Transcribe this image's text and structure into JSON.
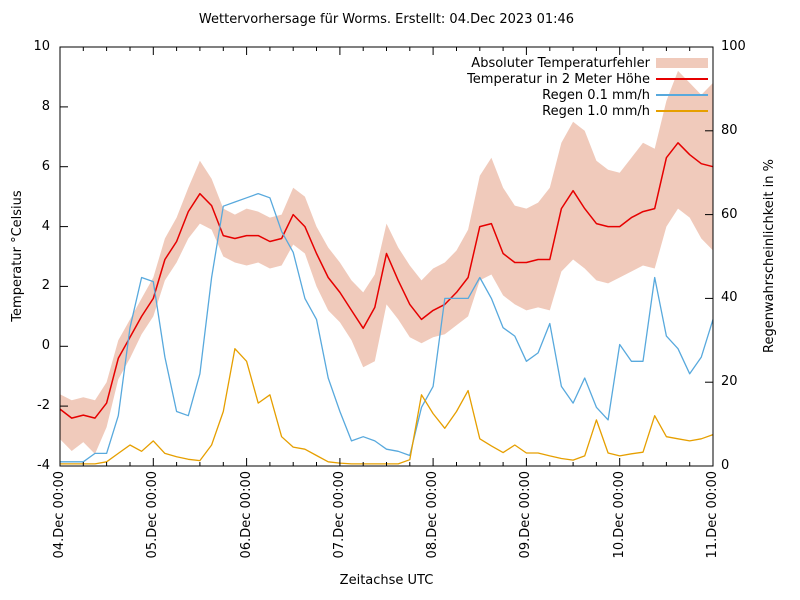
{
  "chart_data": {
    "type": "line",
    "title": "Wettervorhersage für Worms. Erstellt: 04.Dec 2023 01:46",
    "xlabel": "Zeitachse UTC",
    "ylabel_left": "Temperatur °Celsius",
    "ylabel_right": "Regenwahrscheinlichkeit in %",
    "grid": false,
    "legend_position": "top-right-inside",
    "xlim_hours": [
      0,
      168
    ],
    "x_step_hours": 3,
    "minor_x_tick_hours": 6,
    "major_x_tick_hours": 24,
    "x_tick_labels": [
      "04.Dec 00:00",
      "05.Dec 00:00",
      "06.Dec 00:00",
      "07.Dec 00:00",
      "08.Dec 00:00",
      "09.Dec 00:00",
      "10.Dec 00:00",
      "11.Dec 00:00"
    ],
    "ylim_left": [
      -4,
      10
    ],
    "yticks_left": [
      10,
      8,
      6,
      4,
      2,
      0,
      -2,
      -4
    ],
    "ylim_right": [
      0,
      100
    ],
    "yticks_right": [
      100,
      80,
      60,
      40,
      20,
      0
    ],
    "axis_color": "#000000",
    "series": [
      {
        "name": "Absoluter Temperaturfehler",
        "type": "band",
        "axis": "left",
        "color": "#f0cabb",
        "upper": [
          -1.6,
          -1.8,
          -1.7,
          -1.8,
          -1.2,
          0.2,
          0.9,
          1.6,
          2.3,
          3.6,
          4.3,
          5.3,
          6.2,
          5.6,
          4.6,
          4.4,
          4.6,
          4.5,
          4.3,
          4.4,
          5.3,
          5.0,
          4.0,
          3.3,
          2.8,
          2.2,
          1.8,
          2.4,
          4.1,
          3.3,
          2.7,
          2.2,
          2.6,
          2.8,
          3.2,
          3.9,
          5.7,
          6.3,
          5.3,
          4.7,
          4.6,
          4.8,
          5.3,
          6.8,
          7.5,
          7.2,
          6.2,
          5.9,
          5.8,
          6.3,
          6.8,
          6.6,
          8.2,
          9.2,
          8.8,
          8.4,
          8.8
        ],
        "lower": [
          -3.1,
          -3.5,
          -3.2,
          -3.6,
          -2.7,
          -1.1,
          -0.4,
          0.4,
          1.0,
          2.2,
          2.8,
          3.6,
          4.1,
          3.9,
          3.0,
          2.8,
          2.7,
          2.8,
          2.6,
          2.7,
          3.4,
          3.1,
          2.0,
          1.2,
          0.8,
          0.2,
          -0.7,
          -0.5,
          1.4,
          0.9,
          0.3,
          0.1,
          0.3,
          0.4,
          0.7,
          1.0,
          2.2,
          2.4,
          1.7,
          1.4,
          1.2,
          1.3,
          1.2,
          2.5,
          2.9,
          2.6,
          2.2,
          2.1,
          2.3,
          2.5,
          2.7,
          2.6,
          4.0,
          4.6,
          4.3,
          3.6,
          3.2
        ]
      },
      {
        "name": "Temperatur in 2 Meter Höhe",
        "type": "line",
        "axis": "left",
        "color": "#e60000",
        "values": [
          -2.1,
          -2.4,
          -2.3,
          -2.4,
          -1.9,
          -0.4,
          0.3,
          1.0,
          1.6,
          2.9,
          3.5,
          4.5,
          5.1,
          4.7,
          3.7,
          3.6,
          3.7,
          3.7,
          3.5,
          3.6,
          4.4,
          4.0,
          3.1,
          2.3,
          1.8,
          1.2,
          0.6,
          1.3,
          3.1,
          2.2,
          1.4,
          0.9,
          1.2,
          1.4,
          1.8,
          2.3,
          4.0,
          4.1,
          3.1,
          2.8,
          2.8,
          2.9,
          2.9,
          4.6,
          5.2,
          4.6,
          4.1,
          4.0,
          4.0,
          4.3,
          4.5,
          4.6,
          6.3,
          6.8,
          6.4,
          6.1,
          6.0
        ]
      },
      {
        "name": "Regen 0.1 mm/h",
        "type": "line",
        "axis": "right",
        "color": "#58a9dd",
        "values": [
          1,
          1,
          1,
          3,
          3,
          12,
          33,
          45,
          44,
          26,
          13,
          12,
          22,
          45,
          62,
          63,
          64,
          65,
          64,
          56,
          51,
          40,
          35,
          21,
          13,
          6,
          7,
          6,
          4,
          3.5,
          2.5,
          14,
          19,
          40,
          40,
          40,
          45,
          40,
          33,
          31,
          25,
          27,
          34,
          19,
          15,
          21,
          14,
          11,
          29,
          25,
          25,
          45,
          31,
          28,
          22,
          26,
          35
        ]
      },
      {
        "name": "Regen 1.0 mm/h",
        "type": "line",
        "axis": "right",
        "color": "#e69f00",
        "values": [
          0.5,
          0.5,
          0.5,
          0.5,
          1,
          3,
          5,
          3.5,
          6,
          3,
          2.2,
          1.6,
          1.3,
          5,
          13,
          28,
          25,
          15,
          17,
          7,
          4.5,
          4,
          2.5,
          1,
          0.7,
          0.5,
          0.5,
          0.5,
          0.5,
          0.5,
          1.5,
          17,
          12.5,
          9,
          13,
          18,
          6.5,
          4.8,
          3.2,
          5,
          3.1,
          3.1,
          2.4,
          1.8,
          1.4,
          2.4,
          11,
          3.1,
          2.4,
          2.9,
          3.3,
          12,
          7,
          6.5,
          6,
          6.5,
          7.5
        ]
      }
    ]
  }
}
